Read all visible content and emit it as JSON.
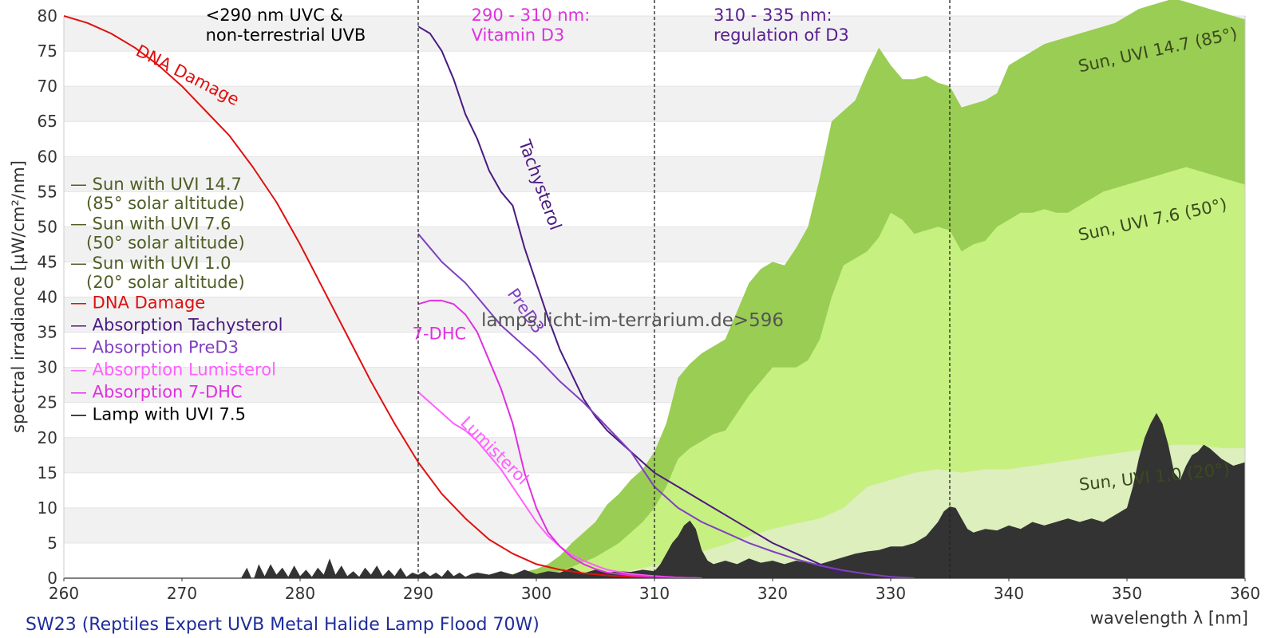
{
  "chart_data": {
    "type": "area",
    "title": "",
    "xlabel": "wavelength λ [nm]",
    "ylabel": "spectral irradiance [µW/cm²/nm]",
    "xlim": [
      260,
      360
    ],
    "ylim": [
      0,
      80
    ],
    "x_ticks": [
      "260",
      "270",
      "280",
      "290",
      "300",
      "310",
      "320",
      "330",
      "340",
      "350",
      "360"
    ],
    "y_ticks": [
      "0",
      "5",
      "10",
      "15",
      "20",
      "25",
      "30",
      "35",
      "40",
      "45",
      "50",
      "55",
      "60",
      "65",
      "70",
      "75",
      "80"
    ],
    "grid": "horizontal alternating bands",
    "caption": "SW23 (Reptiles Expert UVB Metal Halide Lamp Flood 70W)",
    "watermark": "lamps.licht-im-terrarium.de>596",
    "dividers": [
      290,
      310,
      335
    ],
    "regions": [
      {
        "lines": [
          "<290 nm UVC &",
          "non-terrestrial UVB"
        ],
        "color": "#000000",
        "x": 272
      },
      {
        "lines": [
          "290 - 310 nm:",
          "Vitamin D3"
        ],
        "color": "#e030e0",
        "x": 294.5
      },
      {
        "lines": [
          "310 - 335 nm:",
          "regulation of D3"
        ],
        "color": "#5a2090",
        "x": 315
      }
    ],
    "legend": [
      {
        "lines": [
          "— Sun with UVI 14.7",
          "   (85° solar altitude)"
        ],
        "color": "#4e5e25"
      },
      {
        "lines": [
          "— Sun with UVI 7.6",
          "   (50° solar altitude)"
        ],
        "color": "#4e5e25"
      },
      {
        "lines": [
          "— Sun with UVI 1.0",
          "   (20° solar altitude)"
        ],
        "color": "#4e5e25"
      },
      {
        "lines": [
          "— DNA Damage"
        ],
        "color": "#e01010"
      },
      {
        "lines": [
          "— Absorption Tachysterol"
        ],
        "color": "#4a1a80"
      },
      {
        "lines": [
          "— Absorption PreD3"
        ],
        "color": "#8040c0"
      },
      {
        "lines": [
          "— Absorption Lumisterol"
        ],
        "color": "#ff60ff"
      },
      {
        "lines": [
          "— Absorption 7-DHC"
        ],
        "color": "#e030e0"
      },
      {
        "lines": [
          "— Lamp with UVI 7.5"
        ],
        "color": "#000000"
      }
    ],
    "series": [
      {
        "name": "Sun with UVI 14.7",
        "kind": "area",
        "color": "#9acd54",
        "label": "Sun, UVI 14.7 (85°)",
        "label_at": [
          346,
          72,
          -12
        ],
        "x": [
          295,
          296,
          297,
          298,
          299,
          300,
          301,
          302,
          303,
          304,
          305,
          306,
          307,
          308,
          309,
          310,
          311,
          312,
          313,
          314,
          315,
          316,
          317,
          318,
          319,
          320,
          321,
          322,
          323,
          324,
          325,
          326,
          327,
          328,
          329,
          330,
          331,
          332,
          333,
          334,
          335,
          336,
          337,
          338,
          339,
          340,
          341,
          342,
          343,
          344,
          345,
          346,
          347,
          348,
          349,
          350,
          351,
          352,
          353,
          354,
          355,
          356,
          357,
          358,
          359,
          360
        ],
        "y": [
          0.1,
          0.2,
          0.3,
          0.6,
          0.9,
          1.3,
          2.0,
          3.2,
          5.0,
          6.5,
          8.0,
          10.5,
          12.0,
          14.0,
          15.5,
          18.0,
          22.0,
          28.5,
          30.5,
          32.0,
          33.0,
          34.0,
          38.0,
          42.0,
          44.0,
          45.0,
          44.5,
          47.0,
          50.0,
          57.0,
          65.0,
          66.5,
          68.0,
          72.0,
          75.5,
          73.0,
          71.0,
          71.0,
          71.5,
          70.5,
          70.0,
          67.0,
          67.5,
          68.0,
          69.0,
          73.0,
          74.0,
          75.0,
          76.0,
          76.5,
          77.0,
          77.5,
          78.0,
          78.5,
          79.0,
          80.0,
          81.0,
          81.5,
          82.0,
          82.5,
          82.0,
          81.5,
          81.0,
          80.5,
          80.0,
          79.5
        ]
      },
      {
        "name": "Sun with UVI 7.6",
        "kind": "area",
        "color": "#c6f080",
        "label": "Sun, UVI 7.6 (50°)",
        "label_at": [
          346,
          48,
          -12
        ],
        "x": [
          294,
          296,
          298,
          300,
          301,
          302,
          303,
          304,
          305,
          306,
          307,
          308,
          309,
          310,
          311,
          312,
          313,
          314,
          315,
          316,
          317,
          318,
          319,
          320,
          321,
          322,
          323,
          324,
          325,
          326,
          327,
          328,
          329,
          330,
          331,
          332,
          333,
          334,
          335,
          336,
          337,
          338,
          339,
          340,
          341,
          342,
          343,
          344,
          345,
          346,
          347,
          348,
          349,
          350,
          351,
          352,
          353,
          354,
          355,
          356,
          357,
          358,
          359,
          360
        ],
        "y": [
          0.05,
          0.1,
          0.2,
          0.4,
          0.7,
          1.0,
          1.6,
          2.3,
          3.0,
          4.0,
          5.0,
          6.5,
          8.0,
          10.0,
          13.0,
          17.0,
          18.5,
          19.5,
          20.5,
          21.0,
          23.5,
          26.0,
          28.0,
          30.0,
          30.0,
          30.0,
          31.0,
          34.0,
          40.0,
          44.5,
          45.5,
          46.5,
          48.5,
          52.0,
          51.0,
          49.0,
          49.5,
          50.0,
          49.5,
          46.5,
          47.5,
          48.0,
          50.0,
          51.0,
          52.0,
          52.0,
          52.5,
          52.0,
          52.0,
          53.0,
          54.0,
          55.0,
          55.5,
          56.0,
          56.5,
          57.0,
          57.5,
          58.0,
          58.5,
          58.0,
          57.5,
          57.0,
          56.5,
          56.0
        ]
      },
      {
        "name": "Sun with UVI 1.0",
        "kind": "area",
        "color": "#dcefbc",
        "label": "Sun, UVI 1.0 (20°)",
        "label_at": [
          346,
          12.5,
          -6
        ],
        "x": [
          300,
          302,
          304,
          306,
          308,
          310,
          312,
          314,
          316,
          318,
          320,
          322,
          324,
          326,
          328,
          330,
          332,
          334,
          336,
          338,
          340,
          342,
          344,
          346,
          348,
          350,
          352,
          354,
          356,
          358,
          360
        ],
        "y": [
          0.05,
          0.1,
          0.3,
          0.6,
          1.1,
          1.8,
          2.8,
          3.8,
          4.8,
          6.0,
          7.0,
          7.8,
          8.5,
          10.0,
          13.0,
          14.0,
          15.0,
          15.5,
          15.0,
          15.5,
          15.5,
          16.0,
          16.5,
          17.0,
          17.5,
          18.0,
          18.5,
          19.0,
          19.0,
          18.5,
          18.5
        ]
      },
      {
        "name": "Lamp with UVI 7.5",
        "kind": "area",
        "color": "#333333",
        "x": [
          275,
          275.5,
          276,
          276.5,
          277,
          277.5,
          278,
          278.5,
          279,
          279.5,
          280,
          280.5,
          281,
          281.5,
          282,
          282.5,
          283,
          283.5,
          284,
          284.5,
          285,
          285.5,
          286,
          286.5,
          287,
          287.5,
          288,
          288.5,
          289,
          289.5,
          290,
          290.5,
          291,
          291.5,
          292,
          292.5,
          293,
          293.5,
          294,
          294.5,
          295,
          296,
          297,
          298,
          299,
          300,
          301,
          302,
          303,
          304,
          305,
          306,
          307,
          308,
          309,
          310,
          310.5,
          311,
          311.5,
          312,
          312.5,
          313,
          313.5,
          314,
          314.5,
          315,
          316,
          317,
          318,
          319,
          320,
          321,
          322,
          323,
          324,
          325,
          326,
          327,
          328,
          329,
          330,
          331,
          332,
          333,
          333.5,
          334,
          334.5,
          335,
          335.5,
          336,
          336.5,
          337,
          338,
          339,
          340,
          341,
          342,
          343,
          344,
          345,
          346,
          347,
          348,
          349,
          350,
          350.5,
          351,
          351.5,
          352,
          352.5,
          353,
          353.5,
          354,
          354.5,
          355,
          355.5,
          356,
          356.5,
          357,
          358,
          359,
          360
        ],
        "y": [
          0,
          1.5,
          -0.5,
          2.0,
          0.3,
          2.0,
          0.5,
          1.5,
          0.2,
          1.8,
          0.3,
          1.2,
          0.2,
          1.5,
          0.5,
          2.8,
          0.5,
          1.8,
          0.3,
          1.0,
          0.2,
          1.5,
          0.5,
          1.8,
          0.3,
          1.2,
          0.3,
          1.5,
          0.2,
          0.8,
          0.5,
          1.0,
          0.3,
          0.8,
          0.2,
          1.2,
          0.3,
          0.8,
          0.2,
          0.6,
          0.8,
          0.5,
          1.0,
          0.5,
          1.2,
          0.6,
          1.0,
          0.8,
          1.5,
          0.7,
          1.2,
          0.8,
          1.0,
          0.9,
          1.2,
          1.0,
          2.0,
          3.5,
          5.0,
          6.0,
          7.5,
          8.2,
          7.0,
          4.0,
          2.5,
          2.0,
          2.5,
          2.0,
          2.8,
          2.2,
          2.5,
          2.0,
          2.5,
          2.2,
          2.0,
          2.5,
          3.0,
          3.5,
          3.8,
          4.0,
          4.5,
          4.5,
          5.0,
          6.0,
          7.0,
          8.0,
          9.5,
          10.2,
          10.0,
          8.5,
          7.0,
          6.5,
          7.0,
          6.8,
          7.5,
          7.0,
          8.0,
          7.5,
          8.0,
          8.5,
          8.0,
          8.5,
          8.0,
          9.0,
          10.0,
          13.0,
          17.0,
          20.0,
          22.0,
          23.5,
          22.0,
          19.0,
          15.0,
          14.0,
          16.0,
          17.5,
          18.0,
          19.0,
          18.5,
          17.0,
          16.0,
          16.5
        ]
      },
      {
        "name": "DNA Damage",
        "kind": "line",
        "color": "#e01010",
        "label": "DNA Damage",
        "label_at": [
          266,
          74.5,
          27
        ],
        "x": [
          260,
          262,
          264,
          266,
          268,
          270,
          272,
          274,
          276,
          278,
          280,
          282,
          284,
          286,
          288,
          290,
          292,
          294,
          296,
          298,
          300,
          302,
          304,
          306,
          308,
          310
        ],
        "y": [
          80.0,
          79.0,
          77.5,
          75.5,
          73.0,
          70.0,
          66.5,
          63.0,
          58.5,
          53.5,
          47.5,
          41.0,
          34.5,
          28.0,
          22.0,
          16.5,
          12.0,
          8.5,
          5.5,
          3.5,
          2.0,
          1.2,
          0.7,
          0.4,
          0.2,
          0.1
        ]
      },
      {
        "name": "Absorption Tachysterol",
        "kind": "line",
        "color": "#4a1a80",
        "label": "Tachysterol",
        "label_at": [
          298.5,
          62,
          70
        ],
        "x": [
          290,
          291,
          292,
          293,
          294,
          295,
          296,
          297,
          298,
          299,
          300,
          301,
          302,
          303,
          304,
          305,
          306,
          308,
          310,
          312,
          314,
          316,
          318,
          320,
          322,
          324,
          326
        ],
        "y": [
          78.5,
          77.5,
          75.0,
          71.0,
          66.0,
          62.5,
          58.0,
          55.0,
          53.0,
          47.0,
          42.0,
          37.0,
          32.5,
          29.0,
          25.5,
          23.0,
          21.0,
          18.0,
          15.0,
          13.0,
          11.0,
          9.0,
          7.0,
          5.0,
          3.5,
          2.0,
          0.5
        ]
      },
      {
        "name": "Absorption PreD3",
        "kind": "line",
        "color": "#8040c0",
        "label": "PreD3",
        "label_at": [
          297.5,
          40.5,
          55
        ],
        "x": [
          290,
          291,
          292,
          293,
          294,
          295,
          296,
          297,
          298,
          299,
          300,
          302,
          304,
          306,
          308,
          310,
          312,
          314,
          316,
          318,
          320,
          322,
          324,
          326,
          328,
          330,
          332
        ],
        "y": [
          49.0,
          47.0,
          45.0,
          43.5,
          42.0,
          40.0,
          38.0,
          36.0,
          34.5,
          33.0,
          31.5,
          28.0,
          25.0,
          21.5,
          18.0,
          13.0,
          10.0,
          8.0,
          6.5,
          5.0,
          3.8,
          2.7,
          1.8,
          1.1,
          0.6,
          0.2,
          0
        ]
      },
      {
        "name": "Absorption Lumisterol",
        "kind": "line",
        "color": "#ff60ff",
        "label": "Lumisterol",
        "label_at": [
          293.5,
          22,
          45
        ],
        "x": [
          290,
          291,
          292,
          293,
          294,
          295,
          296,
          297,
          298,
          299,
          300,
          301,
          302,
          303,
          304,
          305,
          306,
          308,
          310,
          312,
          314
        ],
        "y": [
          26.5,
          25.0,
          23.5,
          22.0,
          21.0,
          19.5,
          17.5,
          15.5,
          13.0,
          10.5,
          8.0,
          6.0,
          4.5,
          3.3,
          2.5,
          1.8,
          1.2,
          0.6,
          0.3,
          0.1,
          0
        ]
      },
      {
        "name": "Absorption 7-DHC",
        "kind": "line",
        "color": "#e030e0",
        "label": "7-DHC",
        "label_at": [
          289.5,
          34,
          0
        ],
        "x": [
          290,
          291,
          292,
          293,
          294,
          295,
          296,
          297,
          298,
          299,
          300,
          301,
          302,
          303,
          304,
          305,
          306,
          308,
          310,
          312,
          314
        ],
        "y": [
          39.0,
          39.5,
          39.5,
          39.0,
          37.5,
          35.0,
          31.0,
          27.0,
          22.0,
          15.0,
          10.0,
          6.5,
          4.5,
          3.0,
          2.0,
          1.3,
          0.8,
          0.4,
          0.2,
          0.1,
          0
        ]
      }
    ]
  }
}
